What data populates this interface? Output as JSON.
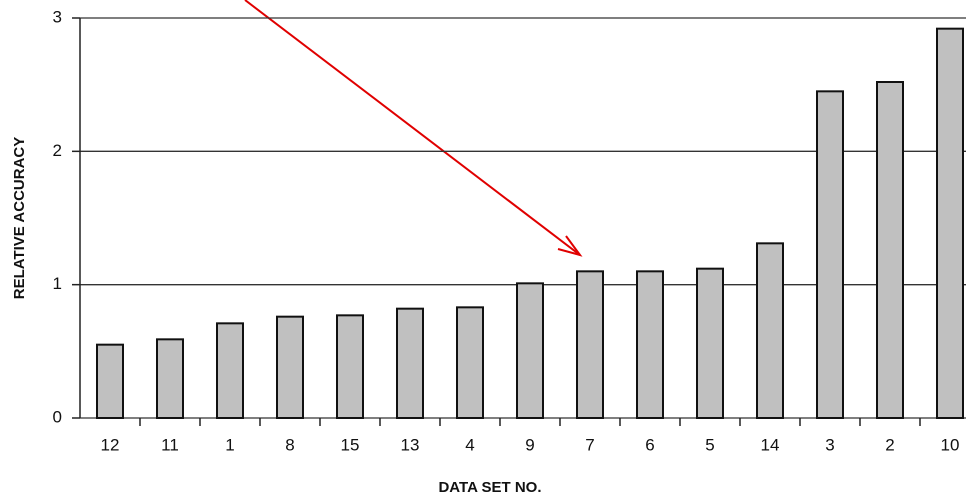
{
  "chart_data": {
    "type": "bar",
    "x_label": "DATA SET NO.",
    "y_label": "RELATIVE ACCURACY",
    "categories": [
      "12",
      "11",
      "1",
      "8",
      "15",
      "13",
      "4",
      "9",
      "7",
      "6",
      "5",
      "14",
      "3",
      "2",
      "10"
    ],
    "values": [
      0.55,
      0.59,
      0.71,
      0.76,
      0.77,
      0.82,
      0.83,
      1.01,
      1.1,
      1.1,
      1.12,
      1.31,
      2.45,
      2.52,
      2.92
    ],
    "color": "#c0c0c0",
    "ylim": [
      0,
      3
    ],
    "yticks": [
      0,
      1,
      2,
      3
    ],
    "grid": true
  }
}
